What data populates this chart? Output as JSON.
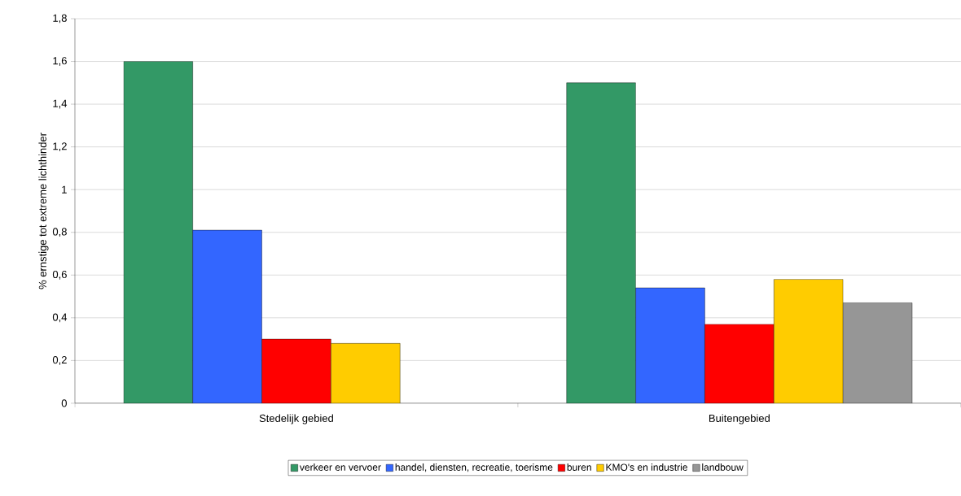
{
  "chart_data": {
    "type": "bar",
    "ylabel": "% ernstige tot extreme lichthinder",
    "categories": [
      "Stedelijk gebied",
      "Buitengebied"
    ],
    "series": [
      {
        "name": "verkeer en vervoer",
        "color": "#339966",
        "values": [
          1.6,
          1.5
        ]
      },
      {
        "name": "handel, diensten, recreatie, toerisme",
        "color": "#3366ff",
        "values": [
          0.81,
          0.54
        ]
      },
      {
        "name": "buren",
        "color": "#ff0000",
        "values": [
          0.3,
          0.37
        ]
      },
      {
        "name": "KMO's en industrie",
        "color": "#ffcc00",
        "values": [
          0.28,
          0.58
        ]
      },
      {
        "name": "landbouw",
        "color": "#969696",
        "values": [
          null,
          0.47
        ]
      }
    ],
    "ylim": [
      0,
      1.8
    ],
    "yticks": [
      0,
      {
        "value": 0.2,
        "label": "0,2"
      },
      {
        "value": 0.4,
        "label": "0,4"
      },
      {
        "value": 0.6,
        "label": "0,6"
      },
      {
        "value": 0.8,
        "label": "0,8"
      },
      1,
      {
        "value": 1.2,
        "label": "1,2"
      },
      {
        "value": 1.4,
        "label": "1,4"
      },
      {
        "value": 1.6,
        "label": "1,6"
      },
      {
        "value": 1.8,
        "label": "1,8"
      }
    ],
    "grid": "y",
    "legend": "bottom"
  }
}
